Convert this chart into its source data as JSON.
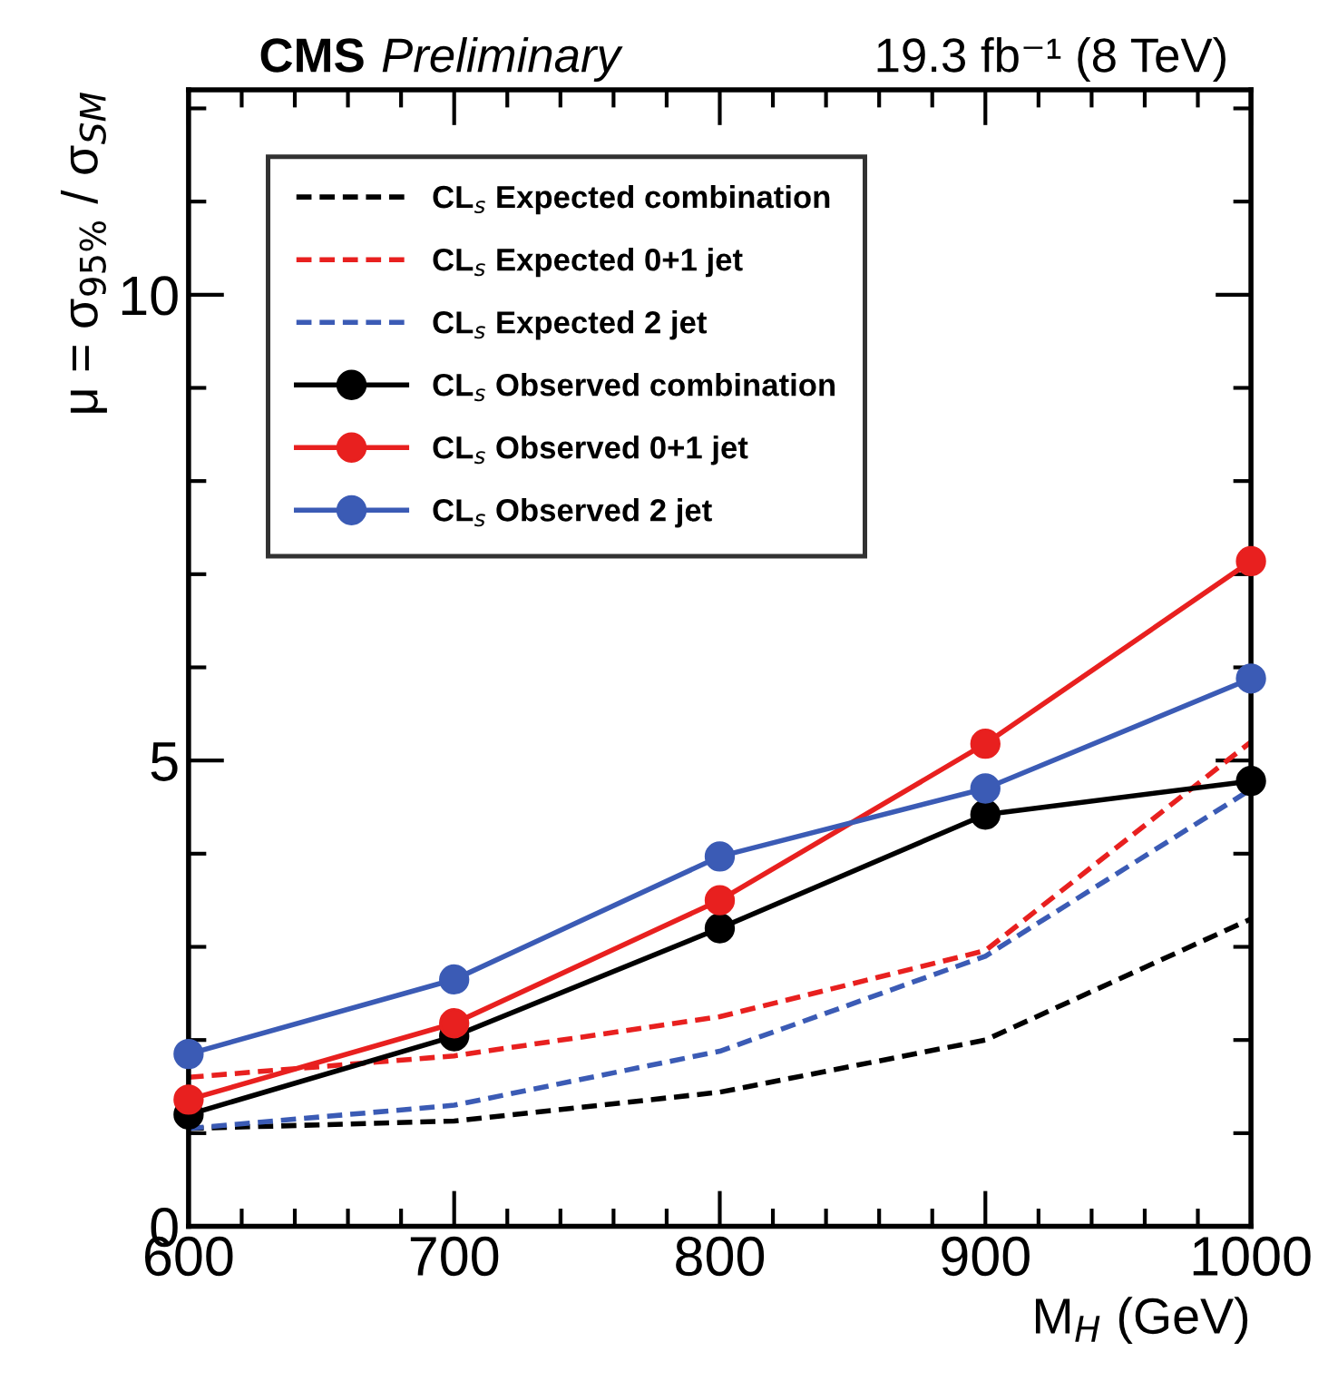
{
  "chart_data": {
    "type": "line",
    "title": "CMS Preliminary",
    "annotations": [
      "19.3 fb⁻¹ (8 TeV)"
    ],
    "xlabel": "M$_{H}$ (GeV)",
    "ylabel": "μ = σ$_{95%}$ / σ$_{SM}$",
    "x": [
      600,
      700,
      800,
      900,
      1000
    ],
    "series": [
      {
        "name": "CL$_{s}$ Expected combination",
        "color": "#000000",
        "line_style": "dashed",
        "marker": "none",
        "values": [
          1.05,
          1.13,
          1.44,
          2.0,
          3.3
        ]
      },
      {
        "name": "CL$_{s}$ Expected 0+1 jet",
        "color": "#e8201f",
        "line_style": "dashed",
        "marker": "none",
        "values": [
          1.6,
          1.83,
          2.25,
          2.96,
          5.2
        ]
      },
      {
        "name": "CL$_{s}$ Expected 2 jet",
        "color": "#3b5bb5",
        "line_style": "dashed",
        "marker": "none",
        "values": [
          1.05,
          1.3,
          1.88,
          2.9,
          4.69
        ]
      },
      {
        "name": "CL$_{s}$ Observed combination",
        "color": "#000000",
        "line_style": "solid",
        "marker": "circle",
        "values": [
          1.2,
          2.04,
          3.2,
          4.42,
          4.78
        ]
      },
      {
        "name": "CL$_{s}$ Observed 0+1 jet",
        "color": "#e8201f",
        "line_style": "solid",
        "marker": "circle",
        "values": [
          1.36,
          2.18,
          3.5,
          5.18,
          7.14
        ]
      },
      {
        "name": "CL$_{s}$ Observed 2 jet",
        "color": "#3b5bb5",
        "line_style": "solid",
        "marker": "circle",
        "values": [
          1.85,
          2.65,
          3.97,
          4.7,
          5.88
        ]
      }
    ],
    "xlim": [
      600,
      1000
    ],
    "xticks": [
      600,
      {
        "value": 620,
        "label": null
      },
      {
        "value": 640,
        "label": null
      },
      {
        "value": 660,
        "label": null
      },
      {
        "value": 680,
        "label": null
      },
      700,
      {
        "value": 720,
        "label": null
      },
      {
        "value": 740,
        "label": null
      },
      {
        "value": 760,
        "label": null
      },
      {
        "value": 780,
        "label": null
      },
      800,
      {
        "value": 820,
        "label": null
      },
      {
        "value": 840,
        "label": null
      },
      {
        "value": 860,
        "label": null
      },
      {
        "value": 880,
        "label": null
      },
      900,
      {
        "value": 920,
        "label": null
      },
      {
        "value": 940,
        "label": null
      },
      {
        "value": 960,
        "label": null
      },
      {
        "value": 980,
        "label": null
      },
      1000
    ],
    "ylim": [
      0,
      12.2
    ],
    "yticks": [
      0,
      {
        "value": 1,
        "label": null
      },
      {
        "value": 2,
        "label": null
      },
      {
        "value": 3,
        "label": null
      },
      {
        "value": 4,
        "label": null
      },
      5,
      {
        "value": 6,
        "label": null
      },
      {
        "value": 7,
        "label": null
      },
      {
        "value": 8,
        "label": null
      },
      {
        "value": 9,
        "label": null
      },
      10,
      {
        "value": 11,
        "label": null
      },
      {
        "value": 12,
        "label": null
      }
    ],
    "grid": false,
    "legend": "top left"
  }
}
